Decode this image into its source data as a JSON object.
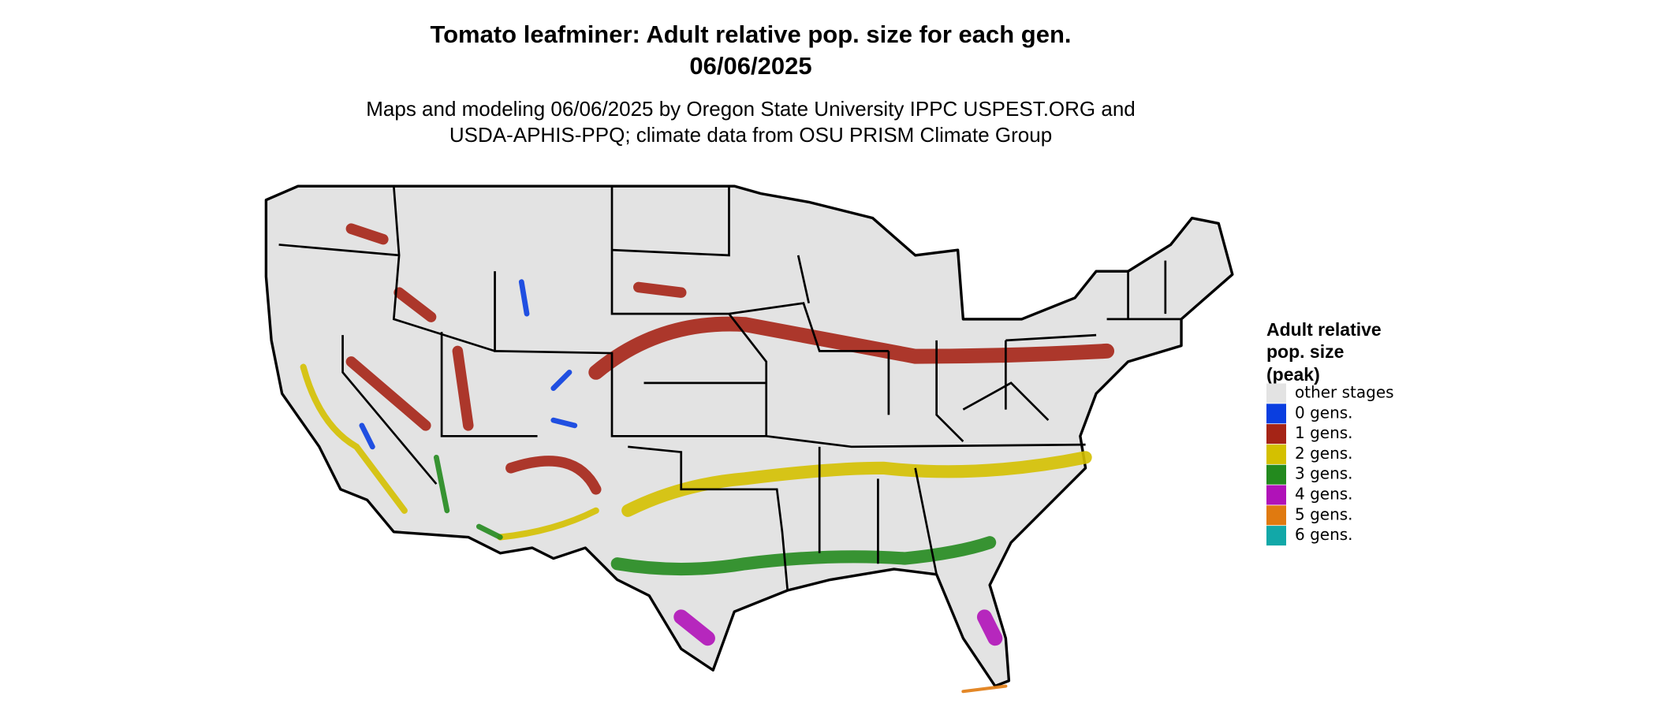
{
  "title": "Tomato leafminer: Adult relative pop. size for each gen.",
  "date": "06/06/2025",
  "subtitle_lines": [
    "Maps and modeling 06/06/2025 by Oregon State University IPPC USPEST.ORG and",
    "USDA-APHIS-PPQ; climate data from OSU PRISM Climate Group"
  ],
  "legend": {
    "title_lines": [
      "Adult relative",
      "pop. size",
      "(peak)"
    ],
    "items": [
      {
        "label": "other stages",
        "color": "#e3e3e3"
      },
      {
        "label": "0 gens.",
        "color": "#0a3ee0"
      },
      {
        "label": "1 gens.",
        "color": "#a52416"
      },
      {
        "label": "2 gens.",
        "color": "#d4c000"
      },
      {
        "label": "3 gens.",
        "color": "#238a1e"
      },
      {
        "label": "4 gens.",
        "color": "#b012b8"
      },
      {
        "label": "5 gens.",
        "color": "#e07a10"
      },
      {
        "label": "6 gens.",
        "color": "#12a8a8"
      }
    ]
  }
}
